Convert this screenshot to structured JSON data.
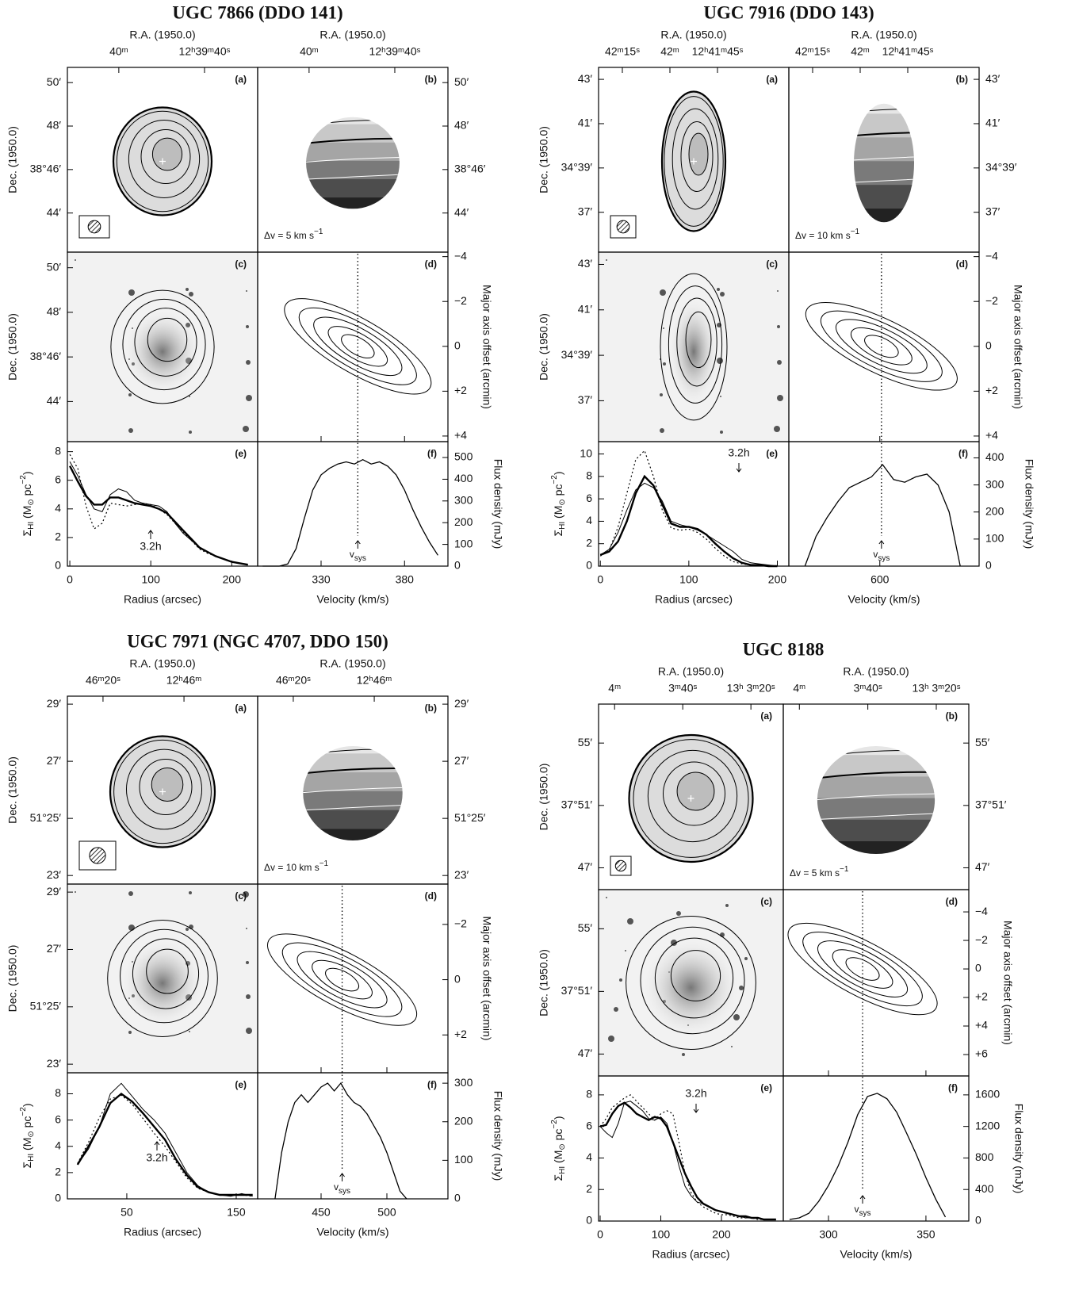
{
  "labels": {
    "ra": "R.A. (1950.0)",
    "dec": "Dec. (1950.0)",
    "offset": "Major axis offset (arcmin)",
    "flux": "Flux density (mJy)",
    "radius": "Radius (arcsec)",
    "velocity": "Velocity (km/s)",
    "sigma": [
      "Σ",
      "HI",
      " (M",
      "⊙",
      " pc",
      "−2",
      ")"
    ],
    "vsys": [
      "v",
      "sys"
    ],
    "beam": "3.2h",
    "panel_letters": [
      "(a)",
      "(b)",
      "(c)",
      "(d)",
      "(e)",
      "(f)"
    ]
  },
  "chart_data": [
    {
      "type": "atlas",
      "title": "UGC 7866 (DDO 141)",
      "ra": {
        "lim": [
          45612,
          45567.6
        ],
        "ticks": [
          {
            "value": 45600,
            "label": "40ᵐ"
          },
          {
            "value": 45580,
            "label": "12ʰ39ᵐ40ˢ"
          }
        ]
      },
      "dec": {
        "lim": [
          42.2,
          50.7
        ],
        "ticks": [
          {
            "value": 50,
            "label": "50′"
          },
          {
            "value": 48,
            "label": "48′"
          },
          {
            "value": 46,
            "label": "38°46′"
          },
          {
            "value": 44,
            "label": "44′"
          }
        ]
      },
      "offset": {
        "lim": [
          4.25,
          -4.2
        ],
        "ticks": [
          {
            "value": -4,
            "label": "−4"
          },
          {
            "value": -2,
            "label": "−2"
          },
          0,
          {
            "value": 2,
            "label": "+2"
          },
          {
            "value": 4,
            "label": "+4"
          }
        ]
      },
      "dv_label": [
        "Δv = 5 km s",
        "−1"
      ],
      "profile": {
        "xlim": [
          -3,
          232
        ],
        "xticks": [
          0,
          100,
          200
        ],
        "ylim": [
          0,
          8.7
        ],
        "yticks": [
          0,
          2,
          4,
          6,
          8
        ],
        "x": [
          0,
          10,
          20,
          30,
          40,
          50,
          60,
          70,
          80,
          90,
          100,
          110,
          120,
          130,
          140,
          150,
          160,
          170,
          180,
          190,
          200,
          210,
          220
        ],
        "lines": [
          {
            "style": "thick",
            "values": [
              7.0,
              5.9,
              4.9,
              4.3,
              4.3,
              4.8,
              4.8,
              4.6,
              4.4,
              4.3,
              4.2,
              4.0,
              3.7,
              3.1,
              2.5,
              1.9,
              1.3,
              1.0,
              0.7,
              0.5,
              0.3,
              0.2,
              0.1
            ]
          },
          {
            "style": "thin",
            "values": [
              7.3,
              6.3,
              5.0,
              4.0,
              3.8,
              5.0,
              5.4,
              5.2,
              4.6,
              4.4,
              4.3,
              4.2,
              3.8,
              3.0,
              2.3,
              1.8,
              1.3,
              1.0,
              0.7,
              0.5,
              0.3,
              0.2,
              0.1
            ]
          },
          {
            "style": "dotted",
            "values": [
              7.8,
              6.8,
              4.2,
              2.6,
              3.0,
              4.4,
              4.3,
              4.2,
              4.3,
              4.4,
              4.3,
              4.0,
              3.6,
              3.0,
              2.4,
              1.8,
              1.2,
              0.9,
              0.7,
              0.5,
              0.3,
              0.2,
              0.1
            ]
          }
        ]
      },
      "spectrum": {
        "xlim": [
          292,
          406
        ],
        "xticks": [
          330,
          380
        ],
        "ylim": [
          0,
          573
        ],
        "yticks": [
          0,
          100,
          200,
          300,
          400,
          500
        ],
        "x": [
          295,
          300,
          305,
          310,
          315,
          320,
          325,
          330,
          335,
          340,
          345,
          350,
          355,
          360,
          365,
          370,
          375,
          380,
          385,
          390,
          395,
          400
        ],
        "values": [
          0,
          0,
          0,
          10,
          80,
          220,
          350,
          420,
          450,
          470,
          480,
          470,
          490,
          470,
          480,
          460,
          420,
          350,
          260,
          180,
          110,
          50
        ],
        "vsys": 352
      }
    },
    {
      "type": "atlas",
      "title": "UGC 7916 (DDO 143)",
      "ra": {
        "lim": [
          45742.5,
          45682.5
        ],
        "ticks": [
          {
            "value": 45735,
            "label": "42ᵐ15ˢ"
          },
          {
            "value": 45720,
            "label": "42ᵐ"
          },
          {
            "value": 45705,
            "label": "12ʰ41ᵐ45ˢ"
          }
        ]
      },
      "dec": {
        "lim": [
          35.2,
          43.54
        ],
        "ticks": [
          {
            "value": 43,
            "label": "43′"
          },
          {
            "value": 41,
            "label": "41′"
          },
          {
            "value": 39,
            "label": "34°39′"
          },
          {
            "value": 37,
            "label": "37′"
          }
        ]
      },
      "offset": {
        "lim": [
          4.25,
          -4.2
        ],
        "ticks": [
          {
            "value": -4,
            "label": "−4"
          },
          {
            "value": -2,
            "label": "−2"
          },
          0,
          {
            "value": 2,
            "label": "+2"
          },
          {
            "value": 4,
            "label": "+4"
          }
        ]
      },
      "dv_label": [
        "Δv = 10 km s",
        "−1"
      ],
      "profile": {
        "xlim": [
          -2,
          213
        ],
        "xticks": [
          0,
          100,
          200
        ],
        "ylim": [
          0,
          11.1
        ],
        "yticks": [
          0,
          2,
          4,
          6,
          8,
          10
        ],
        "x": [
          0,
          10,
          20,
          30,
          40,
          50,
          60,
          70,
          80,
          90,
          100,
          110,
          120,
          130,
          140,
          150,
          160,
          170,
          180,
          190,
          200
        ],
        "lines": [
          {
            "style": "thick",
            "values": [
              1.0,
              1.3,
              2.2,
              4.0,
              6.5,
              8.0,
              7.2,
              5.5,
              3.8,
              3.5,
              3.5,
              3.3,
              2.8,
              2.0,
              1.3,
              0.7,
              0.3,
              0.1,
              0.1,
              0.0,
              0.0
            ]
          },
          {
            "style": "thin",
            "values": [
              1.0,
              1.5,
              3.0,
              5.0,
              6.8,
              7.4,
              7.0,
              5.8,
              4.0,
              3.7,
              3.5,
              3.2,
              2.8,
              2.3,
              1.8,
              1.3,
              0.6,
              0.3,
              0.2,
              0.1,
              0.0
            ]
          },
          {
            "style": "dotted",
            "values": [
              0.9,
              1.4,
              3.5,
              6.5,
              9.5,
              10.3,
              8.0,
              5.0,
              3.4,
              3.2,
              3.3,
              3.0,
              2.4,
              1.6,
              0.9,
              0.4,
              0.2,
              0.1,
              0.1,
              0.0,
              0.0
            ]
          }
        ]
      },
      "spectrum": {
        "xlim": [
          436,
          779
        ],
        "xticks": [
          600
        ],
        "ylim": [
          0,
          460
        ],
        "yticks": [
          0,
          100,
          200,
          300,
          400
        ],
        "x": [
          465,
          485,
          505,
          525,
          545,
          565,
          585,
          605,
          625,
          645,
          665,
          685,
          705,
          725,
          745
        ],
        "values": [
          0,
          110,
          180,
          240,
          290,
          310,
          330,
          375,
          320,
          310,
          330,
          340,
          300,
          200,
          0
        ],
        "vsys": 603
      }
    },
    {
      "type": "atlas",
      "title": "UGC 7971 (NGC 4707, DDO 150)",
      "ra": {
        "lim": [
          45988.8,
          45941.8
        ],
        "ticks": [
          {
            "value": 45980,
            "label": "46ᵐ20ˢ"
          },
          {
            "value": 45960,
            "label": "12ʰ46ᵐ"
          }
        ]
      },
      "dec": {
        "lim": [
          22.7,
          29.28
        ],
        "ticks": [
          {
            "value": 29,
            "label": "29′"
          },
          {
            "value": 27,
            "label": "27′"
          },
          {
            "value": 25,
            "label": "51°25′"
          },
          {
            "value": 23,
            "label": "23′"
          }
        ]
      },
      "offset": {
        "lim": [
          3.37,
          -3.46
        ],
        "ticks": [
          {
            "value": -2,
            "label": "−2"
          },
          0,
          {
            "value": 2,
            "label": "+2"
          }
        ]
      },
      "dv_label": [
        "Δv = 10 km s",
        "−1"
      ],
      "profile": {
        "xlim": [
          -4.3,
          169.6
        ],
        "xticks": [
          50,
          150
        ],
        "ylim": [
          0,
          9.6
        ],
        "yticks": [
          0,
          2,
          4,
          6,
          8
        ],
        "x": [
          5,
          15,
          25,
          35,
          45,
          55,
          65,
          75,
          85,
          95,
          105,
          115,
          125,
          135,
          145,
          155,
          165
        ],
        "lines": [
          {
            "style": "thick",
            "values": [
              2.6,
              4.0,
              5.5,
              7.3,
              8.0,
              7.4,
              6.5,
              5.5,
              4.5,
              3.0,
              1.8,
              0.9,
              0.5,
              0.3,
              0.3,
              0.3,
              0.3
            ]
          },
          {
            "style": "thin",
            "values": [
              2.6,
              3.8,
              5.5,
              8.0,
              8.8,
              7.8,
              6.8,
              6.0,
              5.0,
              3.5,
              2.0,
              1.0,
              0.5,
              0.3,
              0.2,
              0.4,
              0.2
            ]
          },
          {
            "style": "dotted",
            "values": [
              2.7,
              4.3,
              6.2,
              7.6,
              7.9,
              7.2,
              6.1,
              5.0,
              4.0,
              2.8,
              1.6,
              0.8,
              0.5,
              0.3,
              0.3,
              0.3,
              0.2
            ]
          }
        ]
      },
      "spectrum": {
        "xlim": [
          401.8,
          546.4
        ],
        "xticks": [
          450,
          500
        ],
        "ylim": [
          0,
          327
        ],
        "yticks": [
          0,
          100,
          200,
          300
        ],
        "x": [
          415,
          420,
          425,
          430,
          435,
          440,
          445,
          450,
          455,
          460,
          465,
          470,
          475,
          480,
          485,
          490,
          495,
          500,
          505,
          510,
          515
        ],
        "values": [
          0,
          120,
          200,
          250,
          270,
          250,
          270,
          290,
          300,
          280,
          300,
          270,
          250,
          240,
          220,
          190,
          160,
          120,
          70,
          20,
          0
        ],
        "vsys": 466
      }
    },
    {
      "type": "atlas",
      "title": "UGC 8188",
      "ra": {
        "lim": [
          47044.7,
          46990.5
        ],
        "ticks": [
          {
            "value": 47040,
            "label": "4ᵐ"
          },
          {
            "value": 47020,
            "label": "3ᵐ40ˢ"
          },
          {
            "value": 47000,
            "label": "13ʰ 3ᵐ20ˢ"
          }
        ]
      },
      "dec": {
        "lim": [
          45.6,
          57.5
        ],
        "ticks": [
          {
            "value": 55,
            "label": "55′"
          },
          {
            "value": 51,
            "label": "37°51′"
          },
          {
            "value": 47,
            "label": "47′"
          }
        ]
      },
      "offset": {
        "lim": [
          7.5,
          -5.56
        ],
        "ticks": [
          {
            "value": -4,
            "label": "−4"
          },
          {
            "value": -2,
            "label": "−2"
          },
          0,
          {
            "value": 2,
            "label": "+2"
          },
          {
            "value": 4,
            "label": "+4"
          },
          {
            "value": 6,
            "label": "+6"
          }
        ]
      },
      "dv_label": [
        "Δv = 5 km s",
        "−1"
      ],
      "profile": {
        "xlim": [
          -2.6,
          302
        ],
        "xticks": [
          0,
          100,
          200
        ],
        "ylim": [
          0,
          9.2
        ],
        "yticks": [
          0,
          2,
          4,
          6,
          8
        ],
        "x": [
          0,
          10,
          20,
          30,
          40,
          50,
          60,
          70,
          80,
          90,
          100,
          110,
          120,
          130,
          140,
          150,
          160,
          170,
          180,
          190,
          200,
          210,
          220,
          230,
          240,
          250,
          260,
          270,
          280,
          290
        ],
        "lines": [
          {
            "style": "thick",
            "values": [
              6.0,
              6.1,
              6.8,
              7.3,
              7.5,
              7.2,
              6.8,
              6.6,
              6.4,
              6.6,
              6.5,
              6.0,
              5.0,
              4.0,
              3.0,
              2.2,
              1.5,
              1.1,
              0.9,
              0.7,
              0.6,
              0.5,
              0.4,
              0.3,
              0.3,
              0.2,
              0.2,
              0.1,
              0.1,
              0.1
            ]
          },
          {
            "style": "thin",
            "values": [
              6.0,
              5.6,
              5.3,
              6.2,
              7.5,
              7.6,
              7.3,
              7.0,
              6.5,
              6.4,
              6.6,
              6.2,
              5.0,
              3.5,
              2.2,
              1.6,
              1.2,
              1.1,
              0.9,
              0.7,
              0.6,
              0.5,
              0.4,
              0.3,
              0.2,
              0.2,
              0.2,
              0.1,
              0.1,
              0.1
            ]
          },
          {
            "style": "dotted",
            "values": [
              6.0,
              6.5,
              7.2,
              7.5,
              7.8,
              8.0,
              7.6,
              7.2,
              6.8,
              6.4,
              6.8,
              7.0,
              6.8,
              5.0,
              3.0,
              1.8,
              1.2,
              0.9,
              0.7,
              0.5,
              0.4,
              0.4,
              0.3,
              0.2,
              0.2,
              0.2,
              0.1,
              0.1,
              0.1,
              0.1
            ]
          }
        ]
      },
      "spectrum": {
        "xlim": [
          276.8,
          372
        ],
        "xticks": [
          300,
          350
        ],
        "ylim": [
          0,
          1840
        ],
        "yticks": [
          0,
          400,
          800,
          1200,
          1600
        ],
        "x": [
          280,
          285,
          290,
          295,
          300,
          305,
          310,
          315,
          320,
          325,
          330,
          335,
          340,
          345,
          350,
          355,
          360
        ],
        "values": [
          20,
          40,
          100,
          250,
          450,
          700,
          1000,
          1350,
          1580,
          1620,
          1550,
          1380,
          1120,
          850,
          550,
          280,
          50
        ],
        "vsys": 317.5
      }
    }
  ]
}
